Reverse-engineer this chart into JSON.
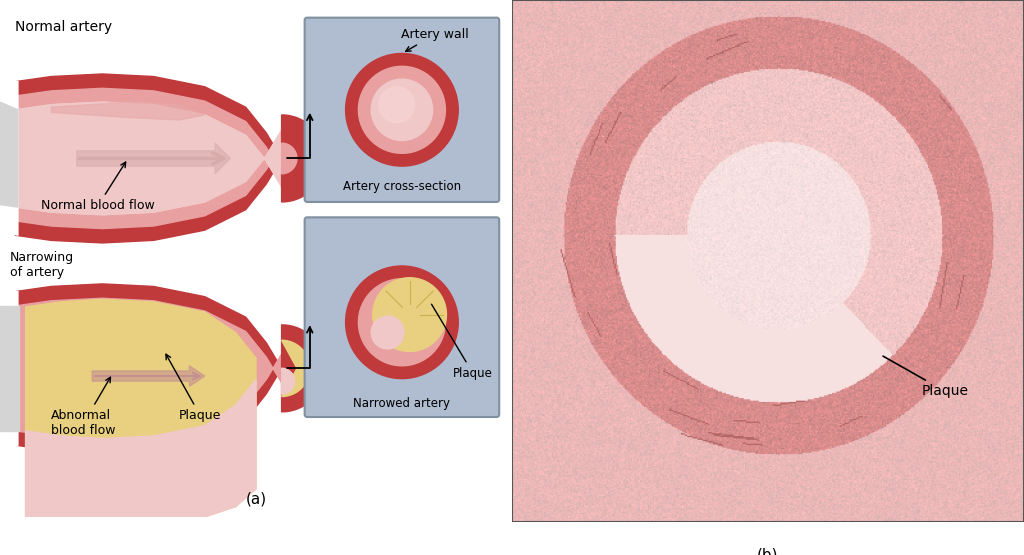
{
  "bg_color": "#fdf8e8",
  "panel_a_bg": "#fdf8e8",
  "panel_b_bg": "#ffffff",
  "artery_wall_color": "#c0393b",
  "artery_inner_color": "#e8a0a0",
  "artery_lumen_color": "#f0c8c8",
  "plaque_color": "#e8d080",
  "plaque_color2": "#d4b860",
  "flow_arrow_color": "#e8c0c0",
  "cross_section_bg": "#b0bcd0",
  "labels": {
    "normal_artery": "Normal artery",
    "normal_blood_flow": "Normal blood flow",
    "narrowing": "Narrowing\nof artery",
    "abnormal_blood_flow": "Abnormal\nblood flow",
    "plaque": "Plaque",
    "artery_wall": "Artery wall",
    "artery_cross_section": "Artery cross-section",
    "narrowed_artery": "Narrowed artery",
    "plaque_b": "Plaque",
    "caption_a": "(a)",
    "caption_b": "(b)"
  },
  "font_size_label": 9,
  "font_size_caption": 11
}
